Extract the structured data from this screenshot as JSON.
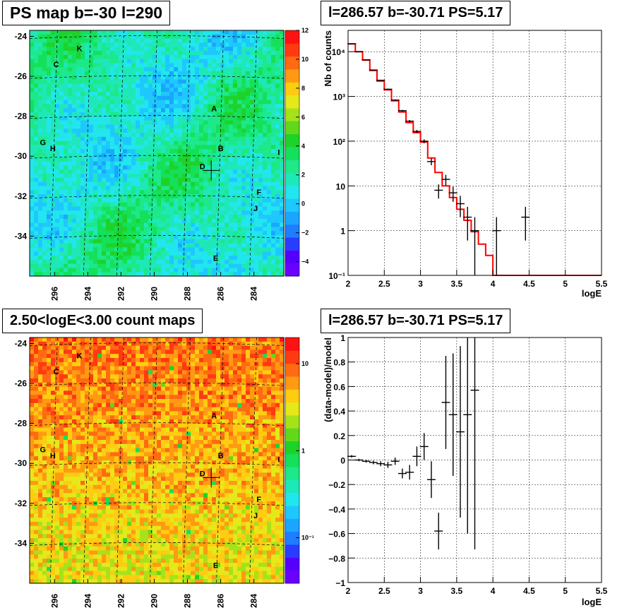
{
  "colors": {
    "model_line": "#ff0000",
    "data_marker": "#000000",
    "grid": "#000000",
    "palette_steps": [
      "#6a00ff",
      "#5500ff",
      "#2a3dff",
      "#1f7dff",
      "#1aa6ff",
      "#1ec8ff",
      "#22e6ee",
      "#1fe8b8",
      "#1de88a",
      "#14e05a",
      "#1fd22a",
      "#62d81a",
      "#a6e21a",
      "#e5e81a",
      "#ffcc12",
      "#ff9a12",
      "#ff6a12",
      "#ff3a12",
      "#ff1212"
    ]
  },
  "panels": {
    "ps_map": {
      "title": "PS map b=-30 l=290",
      "map_style": "cyan-green",
      "y_ticks": [
        "-24",
        "-26",
        "-28",
        "-30",
        "-32",
        "-34"
      ],
      "x_ticks": [
        "296",
        "294",
        "292",
        "290",
        "288",
        "286",
        "284"
      ],
      "colorbar_ticks": [
        "12",
        "10",
        "8",
        "6",
        "4",
        "2",
        "0",
        "−2",
        "−4"
      ],
      "colorbar_range": [
        -5,
        12
      ]
    },
    "count_map": {
      "title": "2.50<logE<3.00 count maps",
      "map_style": "orange-red",
      "y_ticks": [
        "-24",
        "-26",
        "-28",
        "-30",
        "-32",
        "-34"
      ],
      "x_ticks": [
        "296",
        "294",
        "292",
        "290",
        "288",
        "286",
        "284"
      ],
      "colorbar_ticks": [
        "10",
        "1",
        "10⁻¹"
      ],
      "colorbar_scale": "log"
    },
    "spectrum": {
      "title": "l=286.57 b=-30.71 PS=5.17",
      "x_ticks": [
        "2",
        "2.5",
        "3",
        "3.5",
        "4",
        "4.5",
        "5",
        "5.5"
      ],
      "y_ticks": [
        "10⁴",
        "10³",
        "10²",
        "10",
        "1",
        "10⁻¹"
      ]
    },
    "residual": {
      "title": "l=286.57 b=-30.71 PS=5.17",
      "x_ticks": [
        "2",
        "2.5",
        "3",
        "3.5",
        "4",
        "4.5",
        "5",
        "5.5"
      ],
      "y_ticks": [
        "1",
        "0.8",
        "0.6",
        "0.4",
        "0.2",
        "0",
        "−0.2",
        "−0.4",
        "−0.6",
        "−0.8",
        "−1"
      ]
    }
  },
  "sources": [
    {
      "label": "A",
      "l": 286.4,
      "b": -27.6
    },
    {
      "label": "B",
      "l": 286.0,
      "b": -29.6
    },
    {
      "label": "C",
      "l": 295.9,
      "b": -25.4
    },
    {
      "label": "D",
      "l": 287.1,
      "b": -30.5
    },
    {
      "label": "E",
      "l": 286.3,
      "b": -35.1
    },
    {
      "label": "F",
      "l": 283.7,
      "b": -31.8
    },
    {
      "label": "G",
      "l": 296.7,
      "b": -29.3
    },
    {
      "label": "H",
      "l": 296.1,
      "b": -29.6
    },
    {
      "label": "I",
      "l": 282.5,
      "b": -29.8
    },
    {
      "label": "J",
      "l": 283.9,
      "b": -32.6
    },
    {
      "label": "K",
      "l": 294.5,
      "b": -24.6
    }
  ],
  "chart_data": [
    {
      "type": "heatmap",
      "title": "PS map b=-30 l=290",
      "xlim": [
        297.5,
        282.2
      ],
      "ylim": [
        -36.0,
        -23.7
      ],
      "zlim": [
        -5,
        12
      ],
      "target": {
        "l": 286.57,
        "b": -30.71
      }
    },
    {
      "type": "heatmap",
      "title": "2.50<logE<3.00 count maps",
      "xlim": [
        297.5,
        282.2
      ],
      "ylim": [
        -36.0,
        -23.7
      ],
      "z_scale": "log",
      "zlim": [
        0.03,
        20
      ],
      "target": {
        "l": 286.57,
        "b": -30.71
      }
    },
    {
      "type": "line",
      "title": "l=286.57 b=-30.71 PS=5.17",
      "xlabel": "logE",
      "ylabel": "Nb of counts",
      "xlim": [
        2,
        5.5
      ],
      "ylim": [
        0.1,
        30000
      ],
      "y_scale": "log",
      "grid": true,
      "series": [
        {
          "type": "step",
          "edges": [
            2.0,
            2.1,
            2.2,
            2.3,
            2.4,
            2.5,
            2.6,
            2.7,
            2.8,
            2.9,
            3.0,
            3.1,
            3.2,
            3.3,
            3.4,
            3.5,
            3.6,
            3.7,
            3.8,
            3.9,
            4.0,
            4.1,
            4.2,
            4.3,
            4.4,
            4.5,
            4.6,
            4.7,
            4.8,
            4.9,
            5.0,
            5.1,
            5.2,
            5.3,
            5.4,
            5.5
          ],
          "values": [
            15000,
            10000,
            6500,
            3800,
            2200,
            1400,
            800,
            450,
            260,
            155,
            95,
            42,
            20,
            10,
            5.5,
            3.0,
            1.7,
            0.95,
            0.5,
            0.28,
            0.1,
            0.1,
            0.1,
            0.1,
            0.1,
            0.1,
            0.1,
            0.1,
            0.1,
            0.1,
            0.1,
            0.1,
            0.1,
            0.1,
            0.1
          ]
        },
        {
          "type": "errorbar",
          "x": [
            2.05,
            2.15,
            2.25,
            2.35,
            2.45,
            2.55,
            2.65,
            2.75,
            2.85,
            2.95,
            3.05,
            3.15,
            3.25,
            3.35,
            3.45,
            3.55,
            3.65,
            3.75,
            4.05,
            4.45
          ],
          "y": [
            15000,
            10000,
            6600,
            3900,
            2300,
            1450,
            830,
            480,
            280,
            165,
            100,
            35,
            8,
            14,
            7,
            4,
            2,
            1,
            1,
            2
          ],
          "yerr_lo": [
            120,
            100,
            80,
            60,
            48,
            38,
            29,
            22,
            17,
            13,
            10,
            6,
            2.8,
            3.7,
            2.6,
            2,
            1.4,
            1,
            1,
            1.4
          ],
          "yerr_hi": [
            120,
            100,
            80,
            60,
            48,
            38,
            29,
            22,
            17,
            13,
            10,
            6,
            2.8,
            3.7,
            2.6,
            2,
            1.4,
            1,
            1,
            1.4
          ]
        }
      ]
    },
    {
      "type": "scatter",
      "title": "l=286.57 b=-30.71 PS=5.17",
      "xlabel": "logE",
      "ylabel": "(data-model)/model",
      "xlim": [
        2,
        5.5
      ],
      "ylim": [
        -1,
        1
      ],
      "grid": true,
      "series": [
        {
          "type": "errorbar",
          "x": [
            2.05,
            2.15,
            2.25,
            2.35,
            2.45,
            2.55,
            2.65,
            2.75,
            2.85,
            2.95,
            3.05,
            3.15,
            3.25,
            3.35,
            3.45,
            3.55,
            3.65,
            3.75
          ],
          "y": [
            0.03,
            0.0,
            -0.01,
            -0.02,
            -0.03,
            -0.04,
            -0.01,
            -0.11,
            -0.1,
            0.03,
            0.11,
            -0.16,
            -0.58,
            0.47,
            0.37,
            0.23,
            0.37,
            0.57
          ],
          "yerr": [
            0.01,
            0.01,
            0.012,
            0.015,
            0.02,
            0.025,
            0.03,
            0.04,
            0.06,
            0.08,
            0.11,
            0.15,
            0.15,
            0.38,
            0.5,
            0.7,
            0.97,
            1.3
          ]
        }
      ]
    }
  ]
}
